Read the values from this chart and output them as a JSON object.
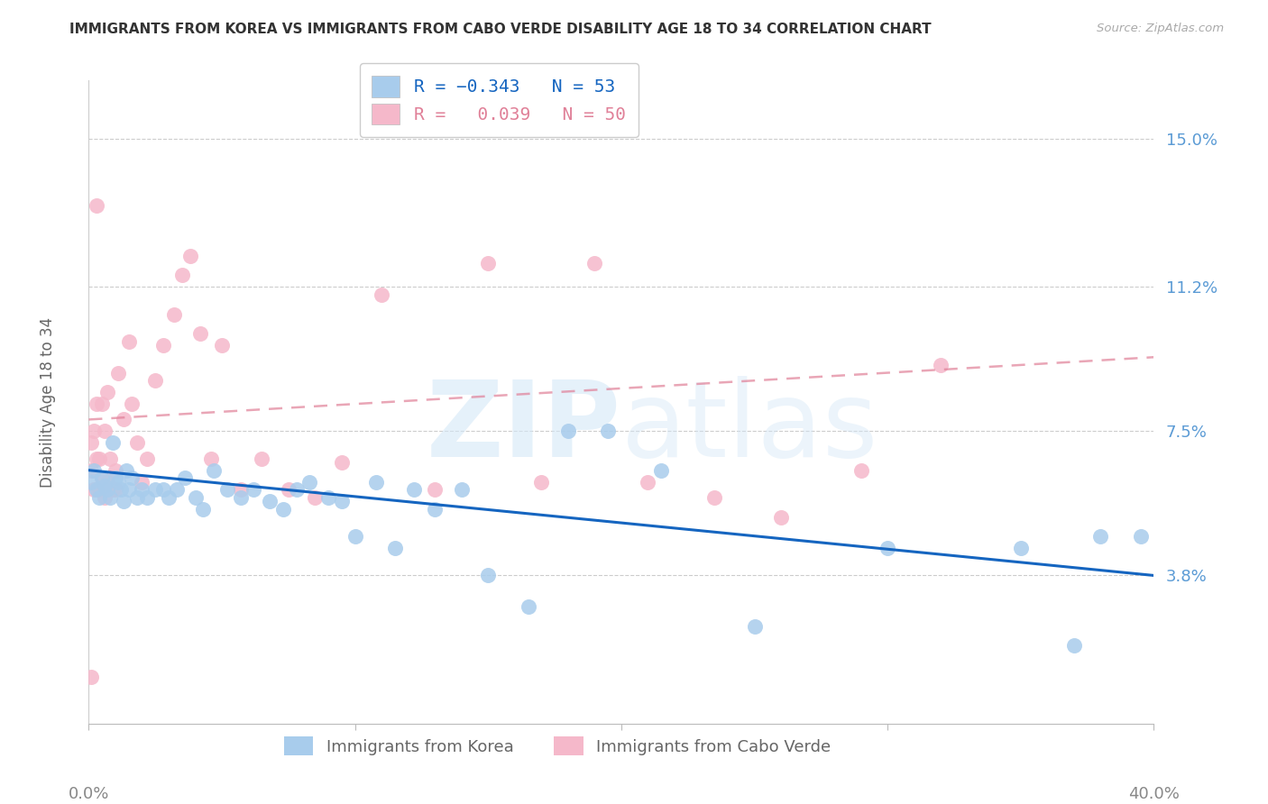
{
  "title": "IMMIGRANTS FROM KOREA VS IMMIGRANTS FROM CABO VERDE DISABILITY AGE 18 TO 34 CORRELATION CHART",
  "source": "Source: ZipAtlas.com",
  "ylabel": "Disability Age 18 to 34",
  "ytick_labels": [
    "3.8%",
    "7.5%",
    "11.2%",
    "15.0%"
  ],
  "ytick_values": [
    0.038,
    0.075,
    0.112,
    0.15
  ],
  "xlim": [
    0.0,
    0.4
  ],
  "ylim": [
    0.0,
    0.165
  ],
  "korea_color": "#a8ccec",
  "cabo_color": "#f5b8ca",
  "korea_line_color": "#1565c0",
  "cabo_line_color": "#e08098",
  "korea_line_start_y": 0.065,
  "korea_line_end_y": 0.038,
  "cabo_line_start_y": 0.078,
  "cabo_line_end_y": 0.094,
  "korea_x": [
    0.001,
    0.002,
    0.003,
    0.004,
    0.005,
    0.006,
    0.007,
    0.008,
    0.009,
    0.01,
    0.011,
    0.012,
    0.013,
    0.014,
    0.015,
    0.016,
    0.018,
    0.02,
    0.022,
    0.025,
    0.028,
    0.03,
    0.033,
    0.036,
    0.04,
    0.043,
    0.047,
    0.052,
    0.057,
    0.062,
    0.068,
    0.073,
    0.078,
    0.083,
    0.09,
    0.095,
    0.1,
    0.108,
    0.115,
    0.122,
    0.13,
    0.14,
    0.15,
    0.165,
    0.18,
    0.195,
    0.215,
    0.25,
    0.3,
    0.35,
    0.37,
    0.38,
    0.395
  ],
  "korea_y": [
    0.062,
    0.065,
    0.06,
    0.058,
    0.063,
    0.061,
    0.06,
    0.058,
    0.072,
    0.063,
    0.062,
    0.06,
    0.057,
    0.065,
    0.06,
    0.063,
    0.058,
    0.06,
    0.058,
    0.06,
    0.06,
    0.058,
    0.06,
    0.063,
    0.058,
    0.055,
    0.065,
    0.06,
    0.058,
    0.06,
    0.057,
    0.055,
    0.06,
    0.062,
    0.058,
    0.057,
    0.048,
    0.062,
    0.045,
    0.06,
    0.055,
    0.06,
    0.038,
    0.03,
    0.075,
    0.075,
    0.065,
    0.025,
    0.045,
    0.045,
    0.02,
    0.048,
    0.048
  ],
  "cabo_x": [
    0.001,
    0.001,
    0.002,
    0.002,
    0.003,
    0.003,
    0.004,
    0.004,
    0.005,
    0.005,
    0.006,
    0.006,
    0.007,
    0.007,
    0.008,
    0.009,
    0.01,
    0.011,
    0.013,
    0.015,
    0.016,
    0.018,
    0.02,
    0.022,
    0.025,
    0.028,
    0.032,
    0.035,
    0.038,
    0.042,
    0.046,
    0.05,
    0.057,
    0.065,
    0.075,
    0.085,
    0.095,
    0.11,
    0.13,
    0.15,
    0.17,
    0.19,
    0.21,
    0.235,
    0.26,
    0.29,
    0.32,
    0.01,
    0.003,
    0.001
  ],
  "cabo_y": [
    0.065,
    0.072,
    0.06,
    0.075,
    0.068,
    0.082,
    0.06,
    0.068,
    0.063,
    0.082,
    0.058,
    0.075,
    0.085,
    0.062,
    0.068,
    0.06,
    0.065,
    0.09,
    0.078,
    0.098,
    0.082,
    0.072,
    0.062,
    0.068,
    0.088,
    0.097,
    0.105,
    0.115,
    0.12,
    0.1,
    0.068,
    0.097,
    0.06,
    0.068,
    0.06,
    0.058,
    0.067,
    0.11,
    0.06,
    0.118,
    0.062,
    0.118,
    0.062,
    0.058,
    0.053,
    0.065,
    0.092,
    0.06,
    0.133,
    0.012
  ]
}
